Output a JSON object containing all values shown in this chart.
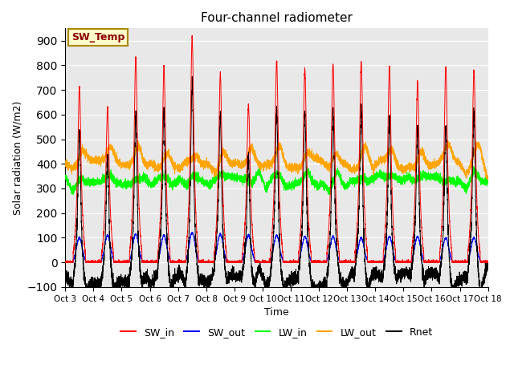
{
  "title": "Four-channel radiometer",
  "xlabel": "Time",
  "ylabel": "Solar radiation (W/m2)",
  "ylim": [
    -100,
    950
  ],
  "yticks": [
    -100,
    0,
    100,
    200,
    300,
    400,
    500,
    600,
    700,
    800,
    900
  ],
  "xtick_labels": [
    "Oct 3",
    "Oct 4",
    "Oct 5",
    "Oct 6",
    "Oct 7",
    "Oct 8",
    "Oct 9",
    "Oct 10",
    "Oct 11",
    "Oct 12",
    "Oct 13",
    "Oct 14",
    "Oct 15",
    "Oct 16",
    "Oct 17",
    "Oct 18"
  ],
  "colors": {
    "SW_in": "#ff0000",
    "SW_out": "#0000ff",
    "LW_in": "#00ff00",
    "LW_out": "#ffa500",
    "Rnet": "#000000"
  },
  "annotation_text": "SW_Temp",
  "annotation_facecolor": "#ffffcc",
  "annotation_edgecolor": "#aa8800",
  "annotation_textcolor": "#8b0000",
  "background_color": "#e8e8e8",
  "grid_color": "#ffffff",
  "num_days": 15,
  "n_points": 6000,
  "day_peaks_SW_in": [
    680,
    600,
    790,
    760,
    870,
    730,
    610,
    780,
    745,
    770,
    775,
    755,
    695,
    755,
    740
  ],
  "day_peaks_SW_out": [
    100,
    110,
    115,
    110,
    120,
    115,
    110,
    110,
    105,
    105,
    100,
    105,
    105,
    100,
    100
  ],
  "LW_in_base": 325,
  "LW_out_base": 395,
  "night_Rnet": -80
}
